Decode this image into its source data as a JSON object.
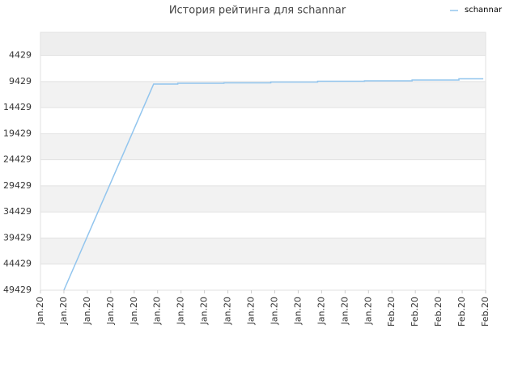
{
  "chart_data": {
    "type": "line",
    "title": "История рейтинга для schannar",
    "y_inverted": true,
    "ylim": [
      49429,
      0
    ],
    "yticks": [
      4429,
      9429,
      14429,
      19429,
      24429,
      29429,
      34429,
      39429,
      44429,
      49429
    ],
    "xlim": [
      0,
      19
    ],
    "xticks": [
      {
        "value": 0,
        "label": "Jan.20"
      },
      {
        "value": 1,
        "label": "Jan.20"
      },
      {
        "value": 2,
        "label": "Jan.20"
      },
      {
        "value": 3,
        "label": "Jan.20"
      },
      {
        "value": 4,
        "label": "Jan.20"
      },
      {
        "value": 5,
        "label": "Jan.20"
      },
      {
        "value": 6,
        "label": "Jan.20"
      },
      {
        "value": 7,
        "label": "Jan.20"
      },
      {
        "value": 8,
        "label": "Jan.20"
      },
      {
        "value": 9,
        "label": "Jan.20"
      },
      {
        "value": 10,
        "label": "Jan.20"
      },
      {
        "value": 11,
        "label": "Jan.20"
      },
      {
        "value": 12,
        "label": "Jan.20"
      },
      {
        "value": 13,
        "label": "Jan.20"
      },
      {
        "value": 14,
        "label": "Jan.20"
      },
      {
        "value": 15,
        "label": "Feb.20"
      },
      {
        "value": 16,
        "label": "Feb.20"
      },
      {
        "value": 17,
        "label": "Feb.20"
      },
      {
        "value": 18,
        "label": "Feb.20"
      },
      {
        "value": 19,
        "label": "Feb.20"
      }
    ],
    "grid": true,
    "legend": "top-right",
    "series": [
      {
        "name": "schannar",
        "color": "#92c5ee",
        "x": [
          1,
          4.83,
          5.86,
          5.86,
          7.83,
          7.83,
          9.83,
          9.83,
          11.83,
          11.83,
          13.83,
          13.83,
          15.86,
          15.86,
          17.86,
          17.86,
          18.9
        ],
        "values": [
          49429,
          9917,
          9917,
          9762,
          9762,
          9684,
          9684,
          9529,
          9529,
          9374,
          9374,
          9297,
          9297,
          9142,
          9142,
          8910,
          8910
        ]
      }
    ]
  }
}
